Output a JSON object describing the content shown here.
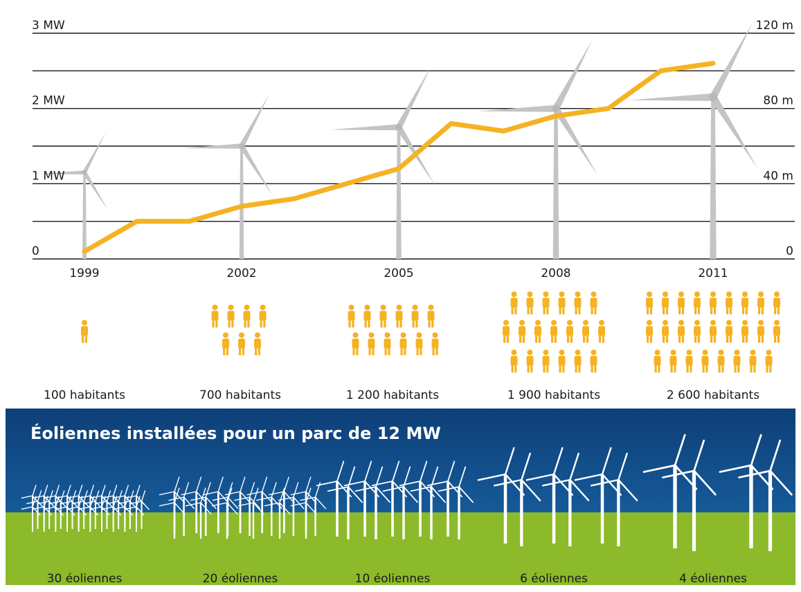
{
  "chart_data": {
    "type": "line",
    "x": [
      1999,
      2000,
      2001,
      2002,
      2003,
      2004,
      2005,
      2006,
      2007,
      2008,
      2009,
      2010,
      2011
    ],
    "series": [
      {
        "values": [
          0.1,
          0.5,
          0.5,
          0.7,
          0.8,
          1.0,
          1.2,
          1.8,
          1.7,
          1.9,
          2.0,
          2.5,
          2.6
        ]
      }
    ],
    "x_ticks": [
      "1999",
      "2002",
      "2005",
      "2008",
      "2011"
    ],
    "left_axis": {
      "ticks": [
        "0",
        "1 MW",
        "2 MW",
        "3 MW"
      ],
      "ylim": [
        0,
        3
      ]
    },
    "right_axis": {
      "ticks": [
        "0",
        "40 m",
        "80 m",
        "120 m"
      ],
      "ylim": [
        0,
        120
      ]
    },
    "turbine_height_m": [
      46,
      60,
      70,
      80,
      86
    ],
    "grid": true,
    "line_color": "#f5b223"
  },
  "inhabitants": {
    "counts": [
      1,
      7,
      12,
      19,
      26
    ],
    "labels": [
      "100 habitants",
      "700 habitants",
      "1 200 habitants",
      "1 900 habitants",
      "2 600 habitants"
    ],
    "icon": "person-icon"
  },
  "park": {
    "title": "Éoliennes installées pour un parc de 12 MW",
    "counts": [
      30,
      20,
      10,
      6,
      4
    ],
    "labels": [
      "30 éoliennes",
      "20 éoliennes",
      "10 éoliennes",
      "6 éoliennes",
      "4 éoliennes"
    ],
    "sky_top": "#0e3f78",
    "sky_bottom": "#1b6db0",
    "ground": "#8cba2a"
  }
}
